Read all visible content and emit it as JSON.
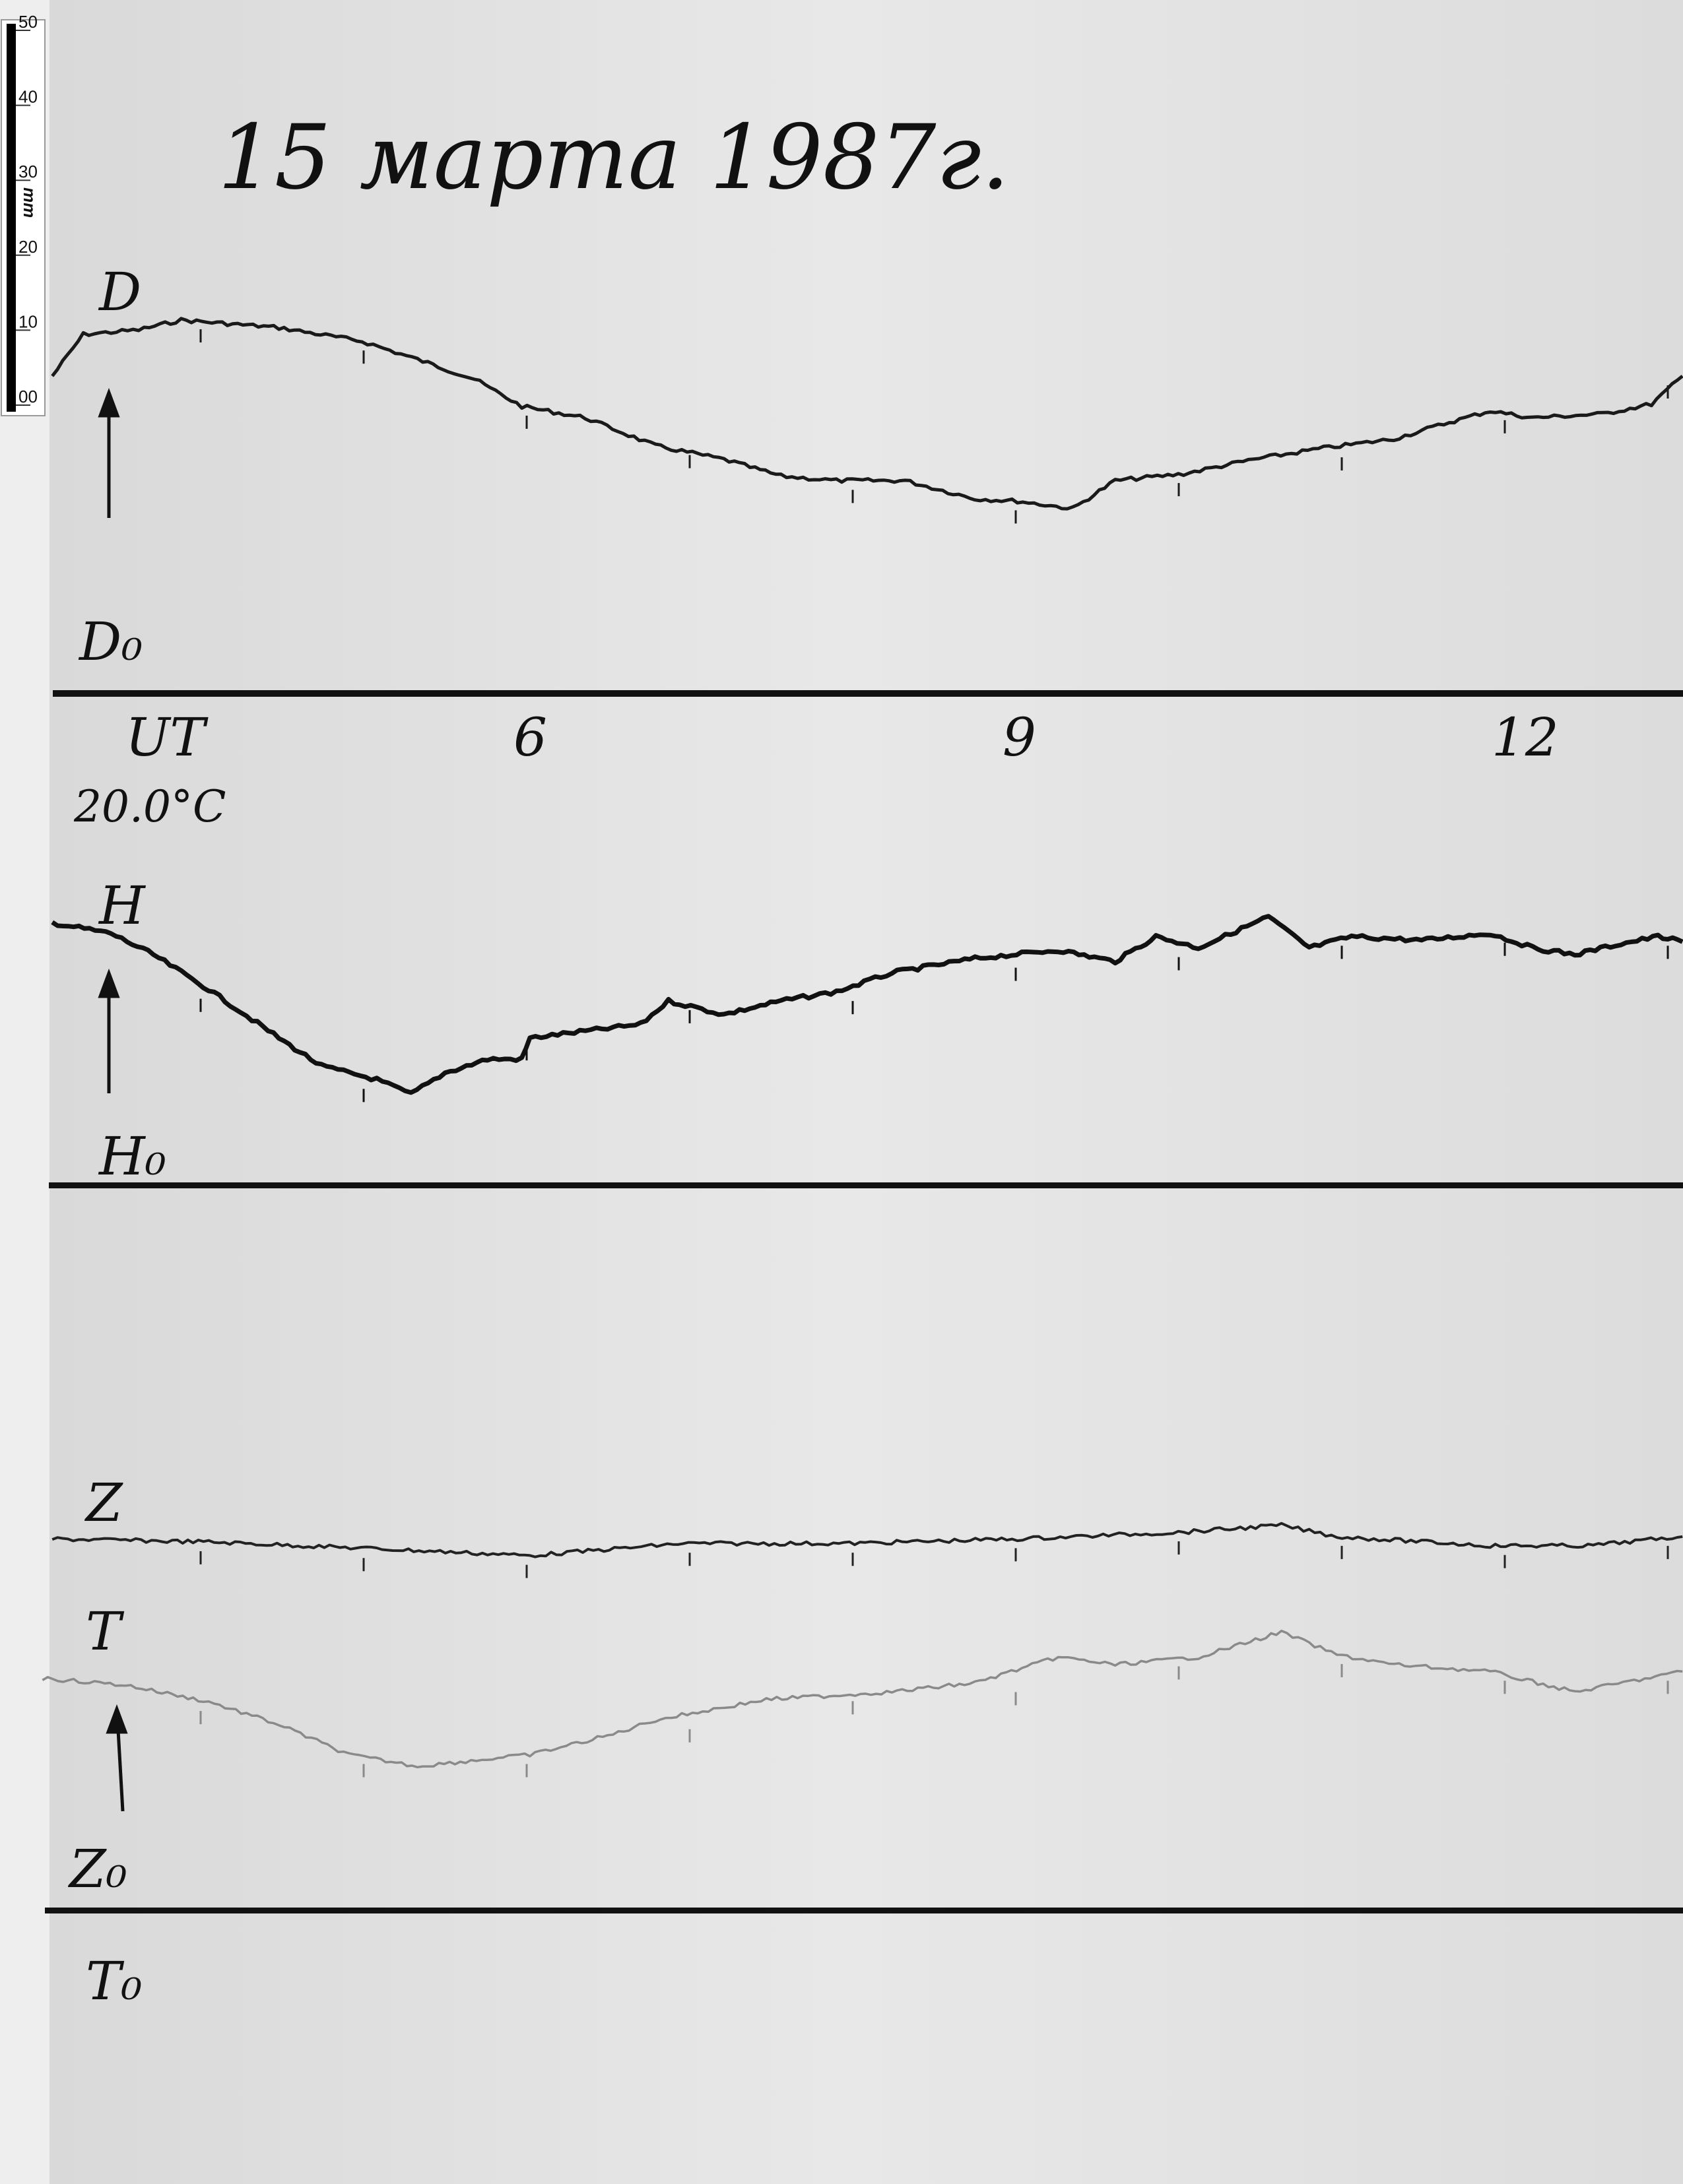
{
  "title": "15 марта 1987г.",
  "scale_bar": {
    "unit": "mm",
    "ticks": [
      "00",
      "10",
      "20",
      "30",
      "40",
      "50"
    ]
  },
  "labels": {
    "d": "D",
    "d0": "D₀",
    "ut": "UT",
    "temp": "20.0°C",
    "h": "H",
    "h0": "H₀",
    "z": "Z",
    "t": "T",
    "z0": "Z₀",
    "t0": "T₀"
  },
  "chart_data": {
    "type": "line",
    "title": "15 марта 1987г.",
    "xlabel": "UT",
    "x_tick_labels": [
      {
        "hour": 6,
        "label": "6"
      },
      {
        "hour": 9,
        "label": "9"
      },
      {
        "hour": 12,
        "label": "12"
      }
    ],
    "xlim": [
      3.0,
      13.1
    ],
    "y_unit": "mm",
    "grid": false,
    "colors": {
      "D": "#1a1a1a",
      "H": "#111111",
      "Z": "#222222",
      "T": "#8a8a8a"
    },
    "series": [
      {
        "name": "D",
        "baseline": "D₀",
        "points": [
          [
            3.09,
            41.9
          ],
          [
            3.28,
            47.4
          ],
          [
            3.62,
            48.0
          ],
          [
            3.88,
            49.3
          ],
          [
            4.48,
            48.3
          ],
          [
            4.99,
            46.5
          ],
          [
            5.33,
            44.1
          ],
          [
            5.68,
            41.5
          ],
          [
            5.97,
            37.9
          ],
          [
            6.36,
            36.4
          ],
          [
            6.79,
            32.7
          ],
          [
            7.21,
            30.9
          ],
          [
            7.56,
            28.7
          ],
          [
            7.9,
            28.1
          ],
          [
            8.32,
            28.1
          ],
          [
            8.75,
            25.7
          ],
          [
            9.01,
            25.4
          ],
          [
            9.35,
            24.4
          ],
          [
            9.61,
            28.1
          ],
          [
            10.03,
            29.0
          ],
          [
            10.46,
            30.9
          ],
          [
            10.89,
            32.4
          ],
          [
            11.32,
            33.6
          ],
          [
            11.66,
            35.8
          ],
          [
            11.91,
            37.3
          ],
          [
            12.17,
            36.4
          ],
          [
            12.6,
            36.9
          ],
          [
            12.9,
            38.2
          ],
          [
            13.09,
            41.9
          ]
        ]
      },
      {
        "name": "H",
        "baseline": "H₀",
        "points": [
          [
            3.09,
            34.7
          ],
          [
            3.45,
            33.3
          ],
          [
            3.71,
            30.5
          ],
          [
            4.05,
            25.9
          ],
          [
            4.48,
            19.5
          ],
          [
            4.74,
            15.8
          ],
          [
            5.08,
            14.0
          ],
          [
            5.29,
            12.1
          ],
          [
            5.5,
            14.9
          ],
          [
            5.76,
            16.7
          ],
          [
            5.97,
            16.7
          ],
          [
            6.02,
            19.5
          ],
          [
            6.36,
            20.4
          ],
          [
            6.7,
            21.3
          ],
          [
            6.87,
            24.4
          ],
          [
            7.21,
            22.6
          ],
          [
            7.56,
            24.4
          ],
          [
            7.9,
            25.6
          ],
          [
            8.24,
            28.1
          ],
          [
            8.75,
            30.0
          ],
          [
            9.26,
            31.1
          ],
          [
            9.61,
            29.6
          ],
          [
            9.86,
            32.9
          ],
          [
            10.12,
            31.4
          ],
          [
            10.55,
            35.5
          ],
          [
            10.8,
            31.4
          ],
          [
            11.06,
            32.9
          ],
          [
            11.49,
            32.4
          ],
          [
            11.91,
            33.3
          ],
          [
            12.17,
            31.4
          ],
          [
            12.43,
            30.5
          ],
          [
            12.68,
            31.8
          ],
          [
            12.94,
            32.9
          ],
          [
            13.09,
            32.2
          ]
        ]
      },
      {
        "name": "Z",
        "baseline": "Z₀",
        "points": [
          [
            3.09,
            49.1
          ],
          [
            4.05,
            48.7
          ],
          [
            5.08,
            47.8
          ],
          [
            6.02,
            46.9
          ],
          [
            6.96,
            48.5
          ],
          [
            7.98,
            48.5
          ],
          [
            9.01,
            49.1
          ],
          [
            10.03,
            50.0
          ],
          [
            10.63,
            50.9
          ],
          [
            10.97,
            49.4
          ],
          [
            11.91,
            48.2
          ],
          [
            12.51,
            48.2
          ],
          [
            13.09,
            49.4
          ]
        ]
      },
      {
        "name": "T",
        "baseline": "Z₀",
        "points": [
          [
            3.03,
            30.7
          ],
          [
            3.54,
            29.8
          ],
          [
            4.05,
            27.6
          ],
          [
            4.48,
            24.6
          ],
          [
            4.91,
            20.6
          ],
          [
            5.33,
            19.1
          ],
          [
            6.02,
            20.6
          ],
          [
            6.53,
            23.3
          ],
          [
            6.79,
            25.2
          ],
          [
            7.47,
            27.9
          ],
          [
            8.24,
            28.9
          ],
          [
            8.75,
            30.1
          ],
          [
            9.26,
            33.5
          ],
          [
            9.61,
            32.5
          ],
          [
            10.12,
            33.5
          ],
          [
            10.63,
            36.8
          ],
          [
            10.97,
            33.8
          ],
          [
            11.32,
            32.5
          ],
          [
            11.91,
            31.6
          ],
          [
            12.43,
            28.9
          ],
          [
            13.09,
            31.6
          ]
        ]
      }
    ]
  }
}
